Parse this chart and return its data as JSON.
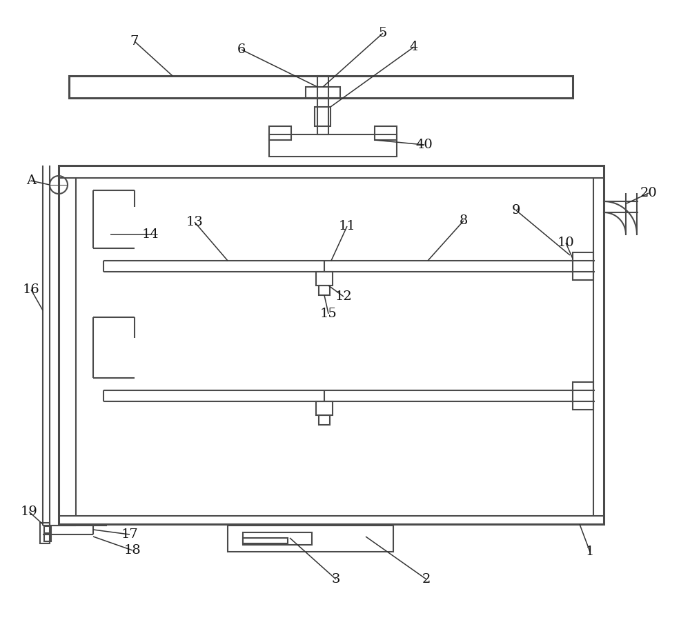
{
  "bg_color": "#ffffff",
  "line_color": "#4a4a4a",
  "line_width": 1.5,
  "thick_line": 2.2,
  "label_color": "#111111",
  "label_fontsize": 14,
  "leader_color": "#333333",
  "fig_width": 10.0,
  "fig_height": 8.99
}
